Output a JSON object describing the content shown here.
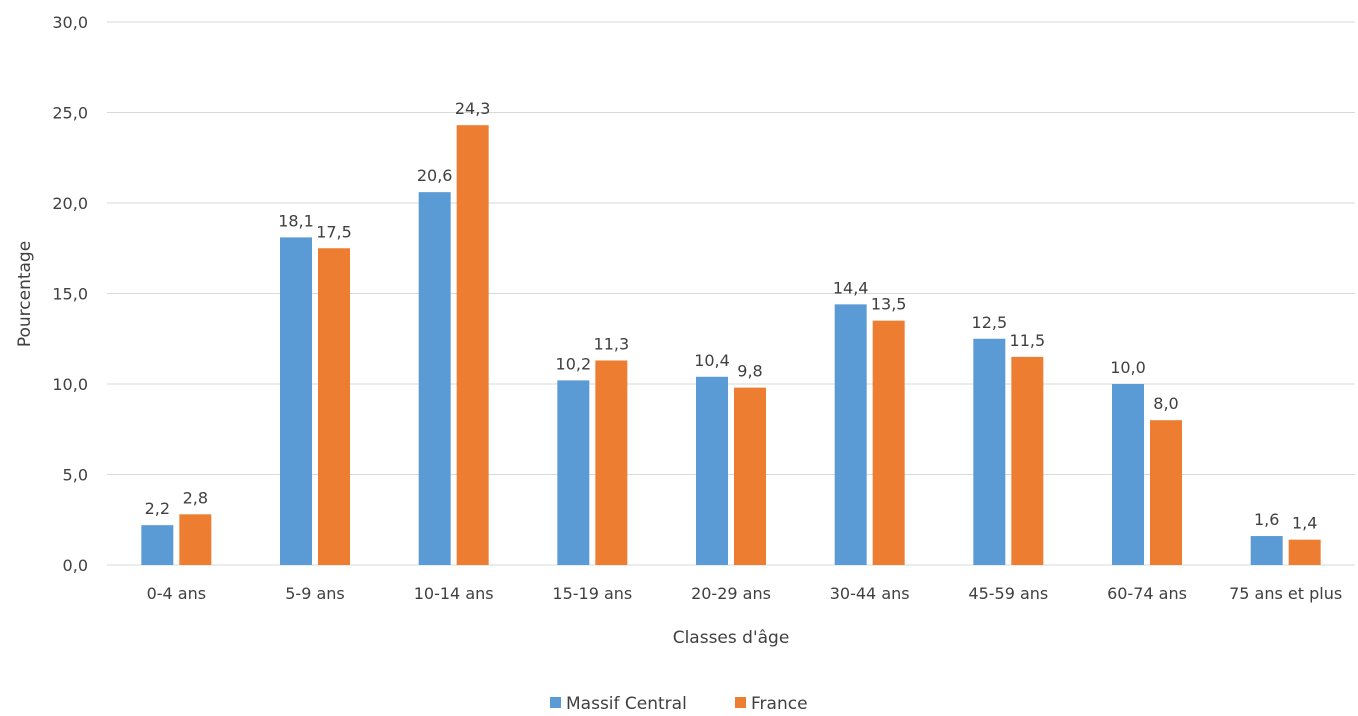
{
  "chart_data": {
    "type": "bar",
    "title": "",
    "xlabel": "Classes d'âge",
    "ylabel": "Pourcentage",
    "ylim": [
      0,
      30
    ],
    "y_ticks": [
      "0,0",
      "5,0",
      "10,0",
      "15,0",
      "20,0",
      "25,0",
      "30,0"
    ],
    "y_tick_values": [
      0,
      5,
      10,
      15,
      20,
      25,
      30
    ],
    "grid": true,
    "legend_position": "bottom",
    "categories": [
      "0-4 ans",
      "5-9 ans",
      "10-14 ans",
      "15-19 ans",
      "20-29 ans",
      "30-44 ans",
      "45-59 ans",
      "60-74 ans",
      "75 ans et plus"
    ],
    "series": [
      {
        "name": "Massif Central",
        "color": "#5b9bd5",
        "values": [
          2.2,
          18.1,
          20.6,
          10.2,
          10.4,
          14.4,
          12.5,
          10.0,
          1.6
        ],
        "labels": [
          "2,2",
          "18,1",
          "20,6",
          "10,2",
          "10,4",
          "14,4",
          "12,5",
          "10,0",
          "1,6"
        ]
      },
      {
        "name": "France",
        "color": "#ed7d31",
        "values": [
          2.8,
          17.5,
          24.3,
          11.3,
          9.8,
          13.5,
          11.5,
          8.0,
          1.4
        ],
        "labels": [
          "2,8",
          "17,5",
          "24,3",
          "11,3",
          "9,8",
          "13,5",
          "11,5",
          "8,0",
          "1,4"
        ]
      }
    ]
  }
}
